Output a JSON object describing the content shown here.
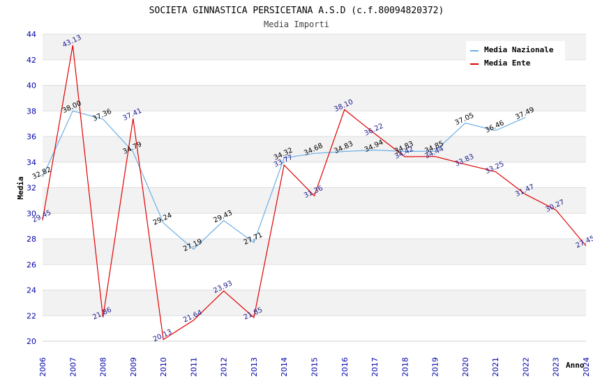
{
  "chart_data": {
    "type": "line",
    "title": "SOCIETA GINNASTICA PERSICETANA A.S.D (c.f.80094820372)",
    "subtitle": "Media Importi",
    "xlabel": "Anno",
    "ylabel": "Media",
    "ylim": [
      20,
      44
    ],
    "yticks": [
      "20",
      "22",
      "24",
      "26",
      "28",
      "30",
      "32",
      "34",
      "36",
      "38",
      "40",
      "42",
      "44"
    ],
    "categories": [
      "2006",
      "2007",
      "2008",
      "2009",
      "2010",
      "2011",
      "2012",
      "2013",
      "2014",
      "2015",
      "2016",
      "2017",
      "2018",
      "2019",
      "2020",
      "2021",
      "2022",
      "2023",
      "2024"
    ],
    "legend_position": "top-right",
    "series": [
      {
        "name": "Media Nazionale",
        "color": "#6aaee6",
        "values": [
          32.82,
          38.0,
          37.36,
          34.79,
          29.24,
          27.19,
          29.43,
          27.71,
          34.32,
          34.68,
          34.83,
          34.94,
          34.83,
          34.85,
          37.05,
          36.46,
          37.49,
          null,
          null
        ],
        "labels": [
          "32.82",
          "38.00",
          "37.36",
          "34.79",
          "29.24",
          "27.19",
          "29.43",
          "27.71",
          "34.32",
          "34.68",
          "34.83",
          "34.94",
          "34.83",
          "34.85",
          "37.05",
          "36.46",
          "37.49",
          "",
          ""
        ]
      },
      {
        "name": "Media Ente",
        "color": "#e00000",
        "values": [
          29.45,
          43.13,
          21.86,
          37.41,
          20.13,
          21.64,
          23.93,
          21.85,
          33.77,
          31.36,
          38.1,
          36.22,
          34.42,
          34.44,
          33.83,
          33.25,
          31.47,
          30.27,
          27.45
        ],
        "labels": [
          "29.45",
          "43.13",
          "21.86",
          "37.41",
          "20.13",
          "21.64",
          "23.93",
          "21.85",
          "33.77",
          "31.36",
          "38.10",
          "36.22",
          "34.42",
          "34.44",
          "33.83",
          "33.25",
          "31.47",
          "30.27",
          "27.45"
        ]
      }
    ]
  }
}
